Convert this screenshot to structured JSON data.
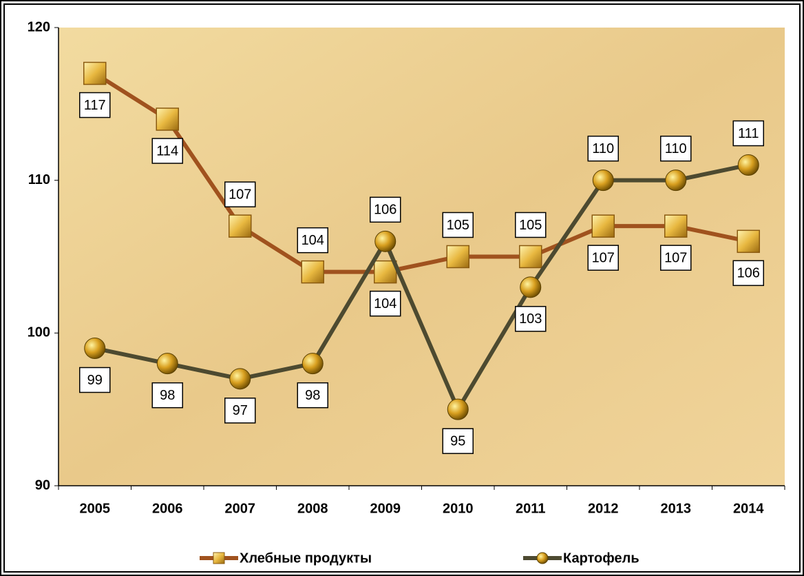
{
  "chart_data": {
    "type": "line",
    "categories": [
      "2005",
      "2006",
      "2007",
      "2008",
      "2009",
      "2010",
      "2011",
      "2012",
      "2013",
      "2014"
    ],
    "series": [
      {
        "name": "Хлебные продукты",
        "color": "#a0521e",
        "marker": "square",
        "values": [
          117,
          114,
          107,
          104,
          104,
          105,
          105,
          107,
          107,
          106
        ]
      },
      {
        "name": "Картофель",
        "color": "#4d4a30",
        "marker": "circle",
        "values": [
          99,
          98,
          97,
          98,
          106,
          95,
          103,
          110,
          110,
          111
        ]
      }
    ],
    "ylim": [
      90,
      120
    ],
    "yticks": [
      90,
      100,
      110,
      120
    ],
    "grid": false,
    "legend": "bottom"
  }
}
